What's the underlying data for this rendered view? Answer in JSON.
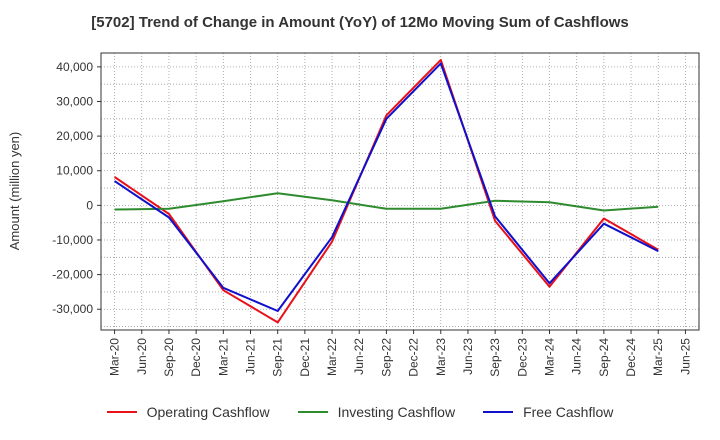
{
  "chart_data": {
    "type": "line",
    "title": "[5702]  Trend of Change in Amount (YoY) of 12Mo Moving Sum of Cashflows",
    "xlabel": "",
    "ylabel": "Amount (million yen)",
    "ylim": [
      -36000,
      44000
    ],
    "yticks": [
      -30000,
      -20000,
      -10000,
      0,
      10000,
      20000,
      30000,
      40000
    ],
    "ytick_labels": [
      "-30,000",
      "-20,000",
      "-10,000",
      "0",
      "10,000",
      "20,000",
      "30,000",
      "40,000"
    ],
    "x_ticks": [
      "Mar-20",
      "Jun-20",
      "Sep-20",
      "Dec-20",
      "Mar-21",
      "Jun-21",
      "Sep-21",
      "Dec-21",
      "Mar-22",
      "Jun-22",
      "Sep-22",
      "Dec-22",
      "Mar-23",
      "Jun-23",
      "Sep-23",
      "Dec-23",
      "Mar-24",
      "Jun-24",
      "Sep-24",
      "Dec-24",
      "Mar-25",
      "Jun-25"
    ],
    "categories": [
      "Mar-20",
      "Sep-20",
      "Mar-21",
      "Sep-21",
      "Mar-22",
      "Sep-22",
      "Mar-23",
      "Sep-23",
      "Mar-24",
      "Sep-24",
      "Mar-25"
    ],
    "grid": true,
    "legend_position": "bottom",
    "series": [
      {
        "name": "Operating Cashflow",
        "color": "#e8111a",
        "values": [
          8200,
          -2500,
          -24500,
          -33800,
          -10500,
          26000,
          42000,
          -4500,
          -23500,
          -3800,
          -12800
        ]
      },
      {
        "name": "Investing Cashflow",
        "color": "#2e8b2e",
        "values": [
          -1200,
          -1000,
          1200,
          3500,
          1500,
          -1000,
          -1000,
          1300,
          900,
          -1500,
          -400
        ]
      },
      {
        "name": "Free Cashflow",
        "color": "#1010cc",
        "values": [
          7000,
          -3500,
          -23800,
          -30500,
          -9200,
          25000,
          41000,
          -3200,
          -22500,
          -5300,
          -13200
        ]
      }
    ]
  }
}
